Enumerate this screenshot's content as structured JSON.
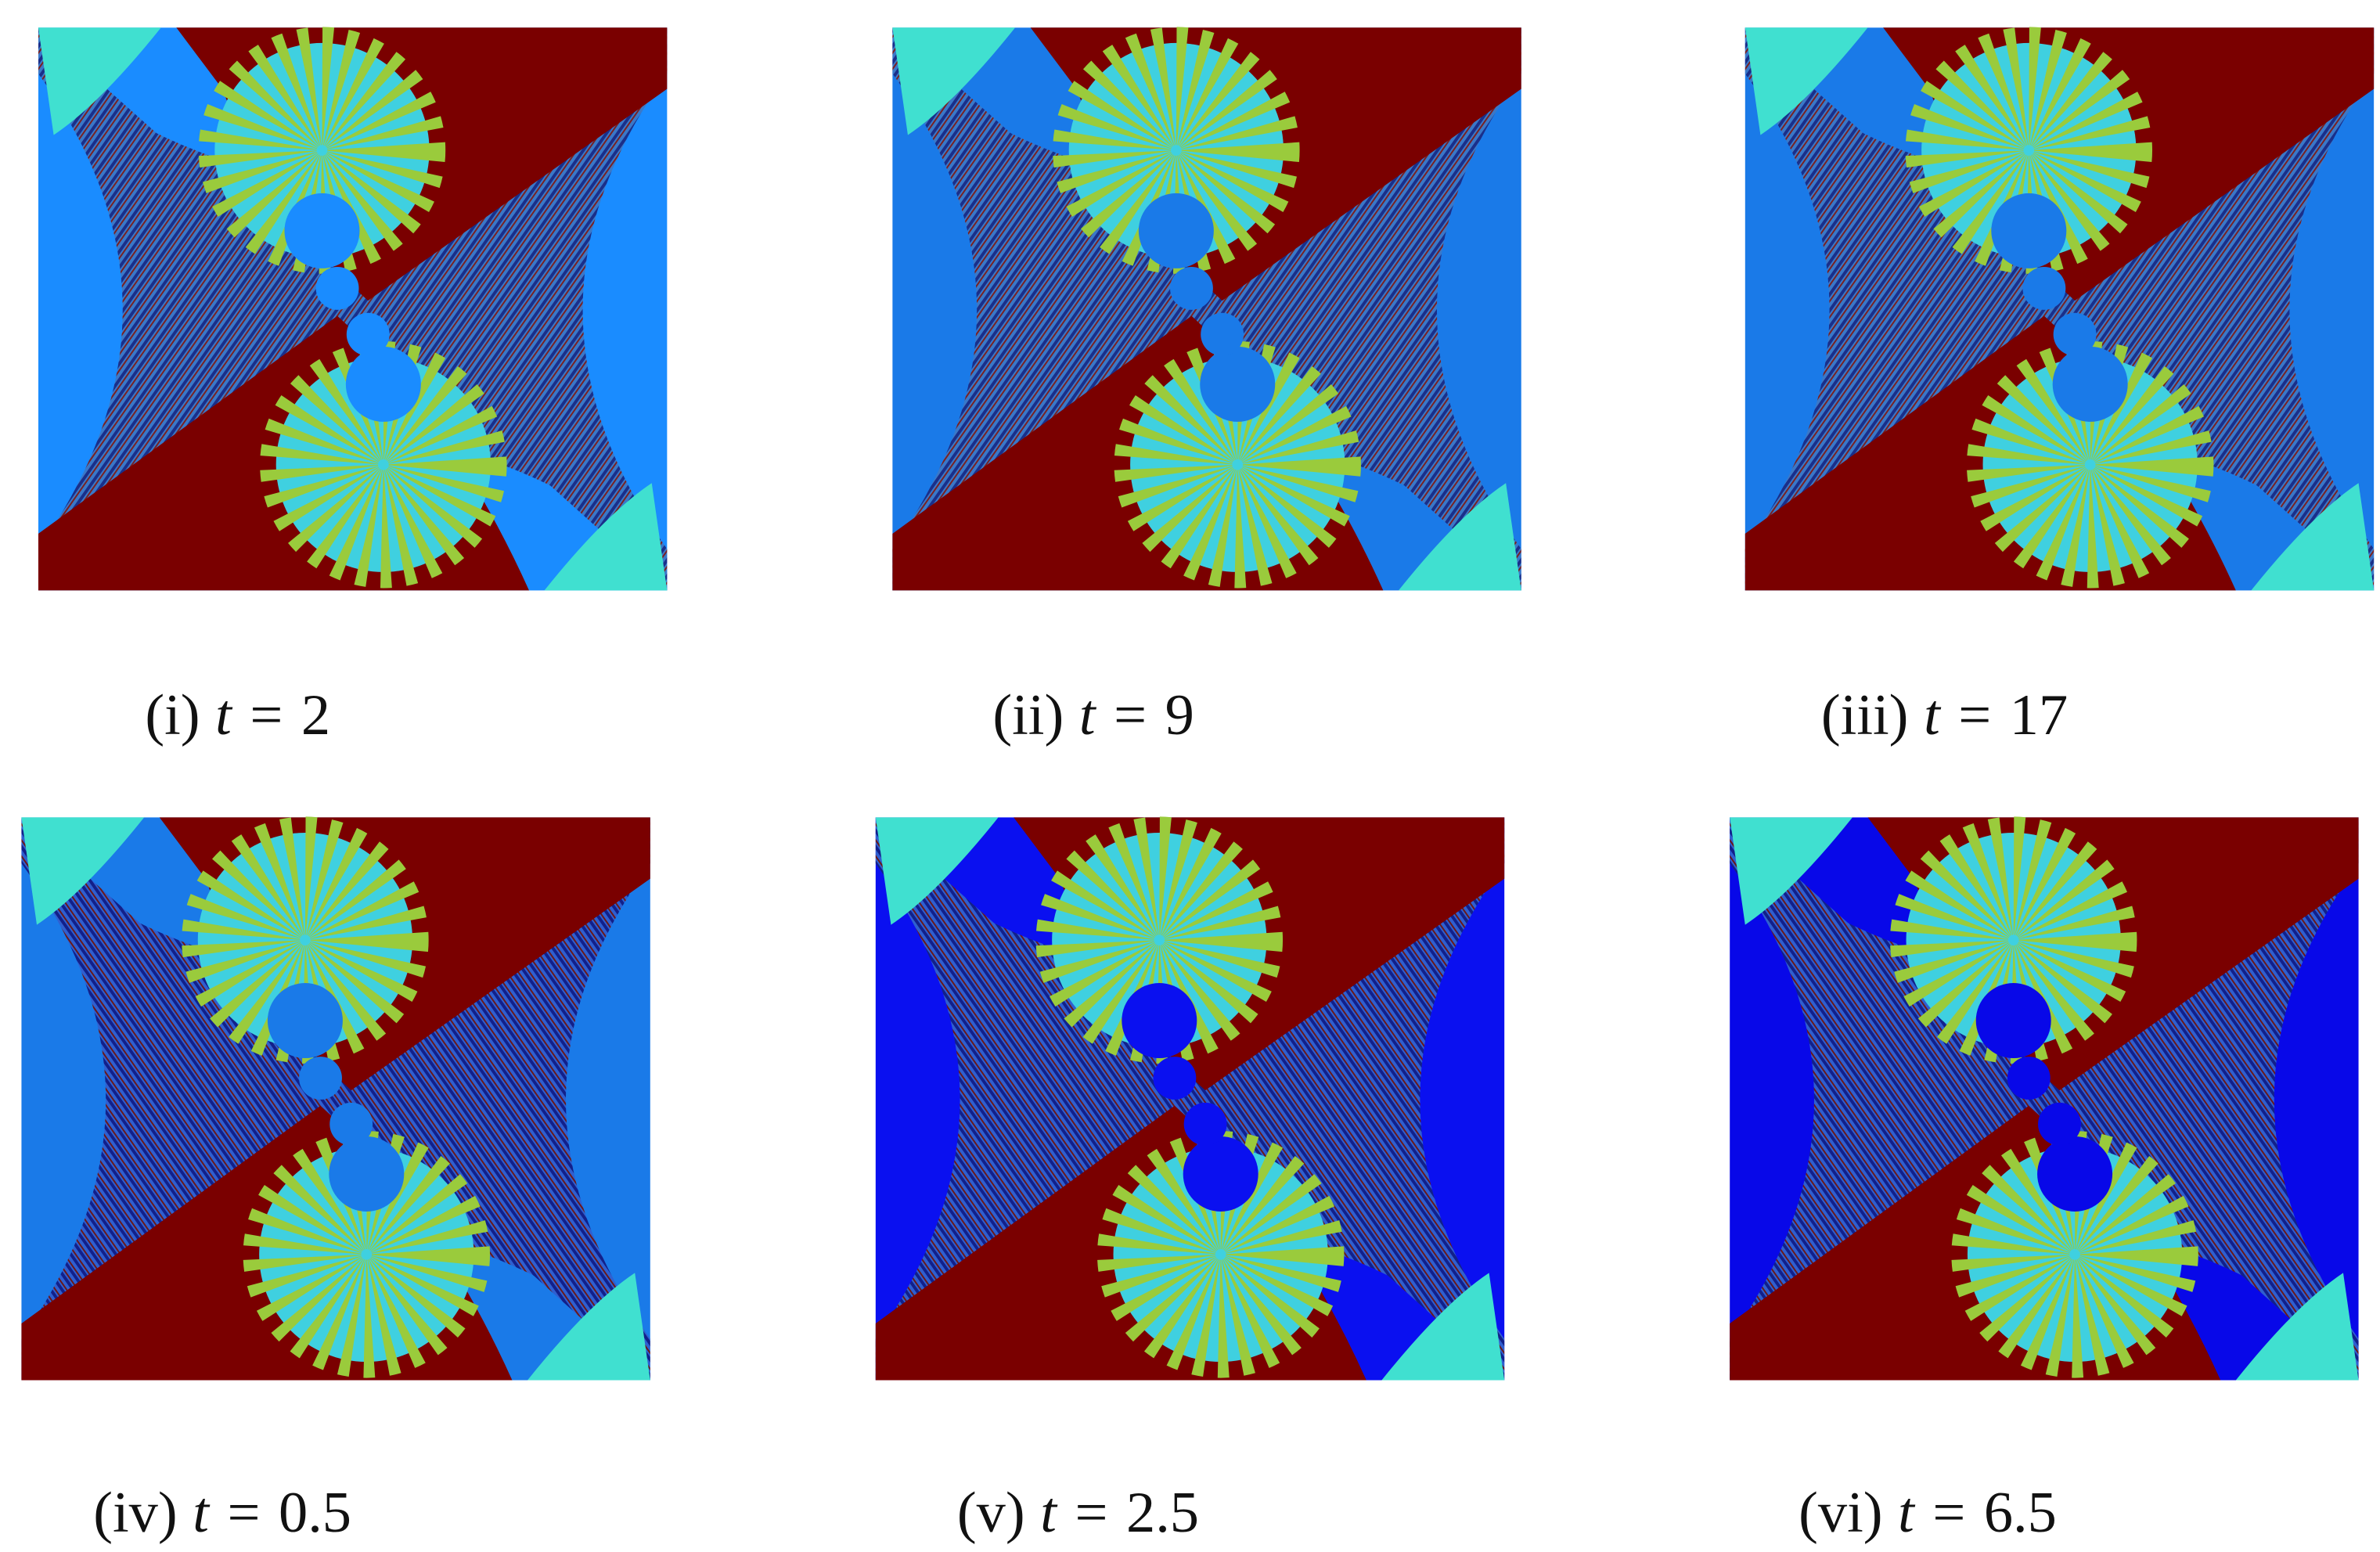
{
  "panels": [
    {
      "label": "(i)",
      "variable": "t",
      "relation": "=",
      "value": "2"
    },
    {
      "label": "(ii)",
      "variable": "t",
      "relation": "=",
      "value": "9"
    },
    {
      "label": "(iii)",
      "variable": "t",
      "relation": "=",
      "value": "17"
    },
    {
      "label": "(iv)",
      "variable": "t",
      "relation": "=",
      "value": "0.5"
    },
    {
      "label": "(v)",
      "variable": "t",
      "relation": "=",
      "value": "2.5"
    },
    {
      "label": "(vi)",
      "variable": "t",
      "relation": "=",
      "value": "6.5"
    }
  ]
}
